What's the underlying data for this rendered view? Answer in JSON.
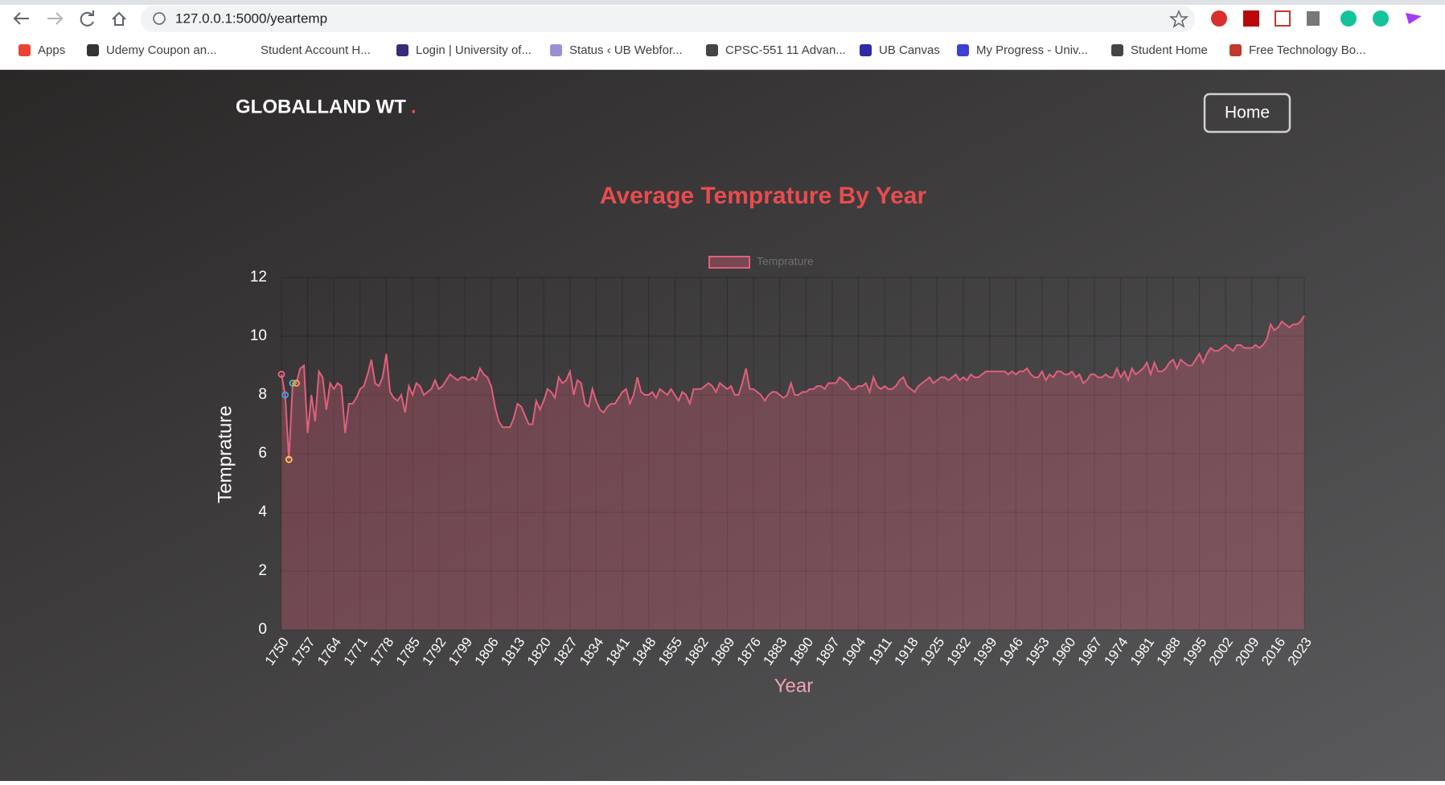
{
  "browser": {
    "url": "127.0.0.1:5000/yeartemp",
    "bookmarks": [
      "Apps",
      "Udemy Coupon an...",
      "Student Account H...",
      "Login | University of...",
      "Status ‹ UB Webfor...",
      "CPSC-551 11 Advan...",
      "UB Canvas",
      "My Progress - Univ...",
      "Student Home",
      "Free Technology Bo..."
    ]
  },
  "nav": {
    "brand": "GLOBALLAND WT",
    "brand_dot": ".",
    "button": "Home"
  },
  "chart_data": {
    "type": "line",
    "title": "Average Temprature By Year",
    "xlabel": "Year",
    "ylabel": "Temprature",
    "categories": [
      "1750",
      null,
      null,
      null,
      null,
      null,
      null,
      "1757",
      null,
      null,
      null,
      null,
      null,
      null,
      "1764",
      null,
      null,
      null,
      null,
      null,
      null,
      "1771",
      null,
      null,
      null,
      null,
      null,
      null,
      "1778",
      null,
      null,
      null,
      null,
      null,
      null,
      "1785",
      null,
      null,
      null,
      null,
      null,
      null,
      "1792",
      null,
      null,
      null,
      null,
      null,
      null,
      "1799",
      null,
      null,
      null,
      null,
      null,
      null,
      "1806",
      null,
      null,
      null,
      null,
      null,
      null,
      "1813",
      null,
      null,
      null,
      null,
      null,
      null,
      "1820",
      null,
      null,
      null,
      null,
      null,
      null,
      "1827",
      null,
      null,
      null,
      null,
      null,
      null,
      "1834",
      null,
      null,
      null,
      null,
      null,
      null,
      "1841",
      null,
      null,
      null,
      null,
      null,
      null,
      "1848",
      null,
      null,
      null,
      null,
      null,
      null,
      "1855",
      null,
      null,
      null,
      null,
      null,
      null,
      "1862",
      null,
      null,
      null,
      null,
      null,
      null,
      "1869",
      null,
      null,
      null,
      null,
      null,
      null,
      "1876",
      null,
      null,
      null,
      null,
      null,
      null,
      "1883",
      null,
      null,
      null,
      null,
      null,
      null,
      "1890",
      null,
      null,
      null,
      null,
      null,
      null,
      "1897",
      null,
      null,
      null,
      null,
      null,
      null,
      "1904",
      null,
      null,
      null,
      null,
      null,
      null,
      "1911",
      null,
      null,
      null,
      null,
      null,
      null,
      "1918",
      null,
      null,
      null,
      null,
      null,
      null,
      "1925",
      null,
      null,
      null,
      null,
      null,
      null,
      "1932",
      null,
      null,
      null,
      null,
      null,
      null,
      "1939",
      null,
      null,
      null,
      null,
      null,
      null,
      "1946",
      null,
      null,
      null,
      null,
      null,
      null,
      "1953",
      null,
      null,
      null,
      null,
      null,
      null,
      "1960",
      null,
      null,
      null,
      null,
      null,
      null,
      "1967",
      null,
      null,
      null,
      null,
      null,
      null,
      "1974",
      null,
      null,
      null,
      null,
      null,
      null,
      "1981",
      null,
      null,
      null,
      null,
      null,
      null,
      "1988",
      null,
      null,
      null,
      null,
      null,
      null,
      "1995",
      null,
      null,
      null,
      null,
      null,
      null,
      "2002",
      null,
      null,
      null,
      null,
      null,
      null,
      "2009",
      null,
      null,
      null,
      null,
      null,
      null,
      "2016",
      null,
      null,
      null,
      null,
      null,
      null,
      "2023"
    ],
    "series": [
      {
        "name": "Temprature",
        "color": "#e0607c",
        "values": [
          8.7,
          8.0,
          5.8,
          8.4,
          8.4,
          8.9,
          9.0,
          6.7,
          8.0,
          7.1,
          8.8,
          8.6,
          7.5,
          8.4,
          8.2,
          8.4,
          8.3,
          6.7,
          7.7,
          7.7,
          7.9,
          8.2,
          8.3,
          8.7,
          9.2,
          8.4,
          8.3,
          8.6,
          9.4,
          8.1,
          7.9,
          7.8,
          8.0,
          7.4,
          8.3,
          8.0,
          8.4,
          8.3,
          8.0,
          8.1,
          8.2,
          8.5,
          8.2,
          8.3,
          8.5,
          8.7,
          8.6,
          8.5,
          8.6,
          8.6,
          8.5,
          8.6,
          8.5,
          8.9,
          8.7,
          8.6,
          8.3,
          7.6,
          7.1,
          6.9,
          6.9,
          6.9,
          7.2,
          7.7,
          7.6,
          7.3,
          7.0,
          7.0,
          7.8,
          7.5,
          7.8,
          8.2,
          8.1,
          7.9,
          8.6,
          8.4,
          8.5,
          8.8,
          8.0,
          8.5,
          8.4,
          7.7,
          7.6,
          8.2,
          7.8,
          7.5,
          7.4,
          7.6,
          7.7,
          7.7,
          7.9,
          8.1,
          8.2,
          7.7,
          8.0,
          8.6,
          8.1,
          8.0,
          8.0,
          8.1,
          7.9,
          8.2,
          8.1,
          8.0,
          8.2,
          8.0,
          7.8,
          8.1,
          8.0,
          7.7,
          8.2,
          8.2,
          8.2,
          8.3,
          8.4,
          8.3,
          8.1,
          8.4,
          8.3,
          8.2,
          8.3,
          8.0,
          8.0,
          8.4,
          8.9,
          8.2,
          8.2,
          8.1,
          8.0,
          7.8,
          8.0,
          8.1,
          8.1,
          8.0,
          7.9,
          8.0,
          8.4,
          8.0,
          8.0,
          8.1,
          8.1,
          8.2,
          8.2,
          8.3,
          8.3,
          8.2,
          8.4,
          8.4,
          8.4,
          8.6,
          8.5,
          8.4,
          8.2,
          8.2,
          8.3,
          8.3,
          8.4,
          8.1,
          8.6,
          8.3,
          8.2,
          8.3,
          8.2,
          8.2,
          8.3,
          8.5,
          8.6,
          8.3,
          8.2,
          8.1,
          8.3,
          8.4,
          8.5,
          8.6,
          8.4,
          8.5,
          8.6,
          8.6,
          8.5,
          8.6,
          8.7,
          8.5,
          8.6,
          8.5,
          8.7,
          8.6,
          8.6,
          8.7,
          8.8,
          8.8,
          8.8,
          8.8,
          8.8,
          8.8,
          8.7,
          8.8,
          8.7,
          8.8,
          8.8,
          8.9,
          8.7,
          8.6,
          8.6,
          8.8,
          8.5,
          8.7,
          8.6,
          8.8,
          8.8,
          8.7,
          8.7,
          8.8,
          8.6,
          8.7,
          8.4,
          8.5,
          8.7,
          8.7,
          8.6,
          8.6,
          8.7,
          8.6,
          8.6,
          8.9,
          8.6,
          8.8,
          8.5,
          8.9,
          8.7,
          8.8,
          8.9,
          9.1,
          8.7,
          9.1,
          8.8,
          8.8,
          8.9,
          9.1,
          9.2,
          8.9,
          9.2,
          9.1,
          9.0,
          9.0,
          9.2,
          9.4,
          9.1,
          9.4,
          9.6,
          9.5,
          9.5,
          9.6,
          9.7,
          9.6,
          9.5,
          9.7,
          9.7,
          9.6,
          9.6,
          9.6,
          9.7,
          9.6,
          9.7,
          9.9,
          10.4,
          10.2,
          10.3,
          10.5,
          10.4,
          10.3,
          10.4,
          10.4,
          10.5,
          10.7
        ]
      }
    ],
    "point_colors": [
      "#ff6384",
      "#36a2eb",
      "#ffce56",
      "#4bc0c0",
      "#ff9f40"
    ],
    "ylim": [
      0,
      12
    ],
    "yticks": [
      0,
      2,
      4,
      6,
      8,
      10,
      12
    ],
    "grid": true,
    "legend": "top"
  }
}
